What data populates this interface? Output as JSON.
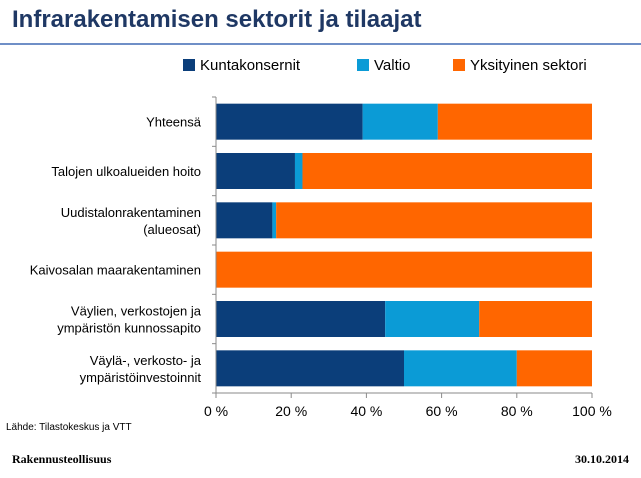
{
  "slide": {
    "title": "Infrarakentamisen sektorit ja tilaajat",
    "source": "Lähde: Tilastokeskus ja VTT",
    "footer_left": "Rakennusteollisuus",
    "footer_right": "30.10.2014"
  },
  "chart_data": {
    "type": "bar",
    "orientation": "horizontal",
    "stacking": "percent",
    "title": "Infrarakentamisen sektorit ja tilaajat",
    "legend_position": "top",
    "categories": [
      [
        "Yhteensä"
      ],
      [
        "Talojen ulkoalueiden hoito"
      ],
      [
        "Uudistalonrakentaminen",
        "(alueosat)"
      ],
      [
        "Kaivosalan maarakentaminen"
      ],
      [
        "Väylien, verkostojen ja",
        "ympäristön kunnossapito"
      ],
      [
        "Väylä-, verkosto- ja",
        "ympäristöinvestoinnit"
      ]
    ],
    "series": [
      {
        "name": "Kuntakonsernit",
        "color": "#0b3e7a",
        "values": [
          39,
          21,
          15,
          0,
          45,
          50
        ]
      },
      {
        "name": "Valtio",
        "color": "#0b9bd6",
        "values": [
          20,
          2,
          1,
          0,
          25,
          30
        ]
      },
      {
        "name": "Yksityinen sektori",
        "color": "#ff6600",
        "values": [
          41,
          77,
          84,
          100,
          30,
          20
        ]
      }
    ],
    "x_ticks": [
      "0 %",
      "20 %",
      "40 %",
      "60 %",
      "80 %",
      "100 %"
    ],
    "xlim": [
      0,
      100
    ],
    "grid": false
  }
}
